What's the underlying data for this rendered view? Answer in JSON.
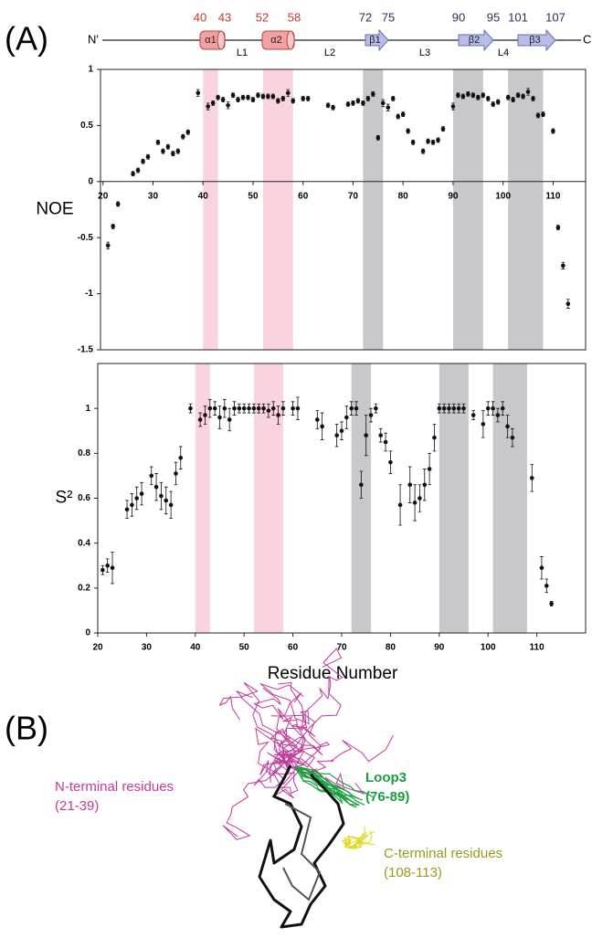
{
  "panel_labels": [
    "(A)",
    "(B)"
  ],
  "topology": {
    "n_label": "N'",
    "c_label": "C'",
    "elements": [
      {
        "kind": "helix",
        "name": "α1",
        "start": "40",
        "end": "43"
      },
      {
        "kind": "helix",
        "name": "α2",
        "start": "52",
        "end": "58"
      },
      {
        "kind": "strand",
        "name": "β1",
        "start": "72",
        "end": "75"
      },
      {
        "kind": "strand",
        "name": "β2",
        "start": "90",
        "end": "95"
      },
      {
        "kind": "strand",
        "name": "β3",
        "start": "101",
        "end": "107"
      }
    ],
    "loops": [
      "L1",
      "L2",
      "L3",
      "L4"
    ]
  },
  "chart_data": [
    {
      "type": "scatter",
      "y_label": "NOE",
      "xlim": [
        19.5,
        116.5
      ],
      "xticks": [
        20,
        30,
        40,
        50,
        60,
        70,
        80,
        90,
        100,
        110
      ],
      "ylim": [
        -1.5,
        1
      ],
      "yticks": [
        1,
        0.5,
        0,
        -0.5,
        -1,
        -1.5
      ],
      "highlight_regions": [
        {
          "range": [
            40,
            43
          ],
          "color": "#f9d3de"
        },
        {
          "range": [
            52,
            58
          ],
          "color": "#f9d3de"
        },
        {
          "range": [
            72,
            76
          ],
          "color": "#c8c8cc"
        },
        {
          "range": [
            90,
            96
          ],
          "color": "#c8c8cc"
        },
        {
          "range": [
            101,
            108
          ],
          "color": "#c8c8cc"
        }
      ],
      "series": [
        {
          "color": "#111111",
          "x": [
            21,
            22,
            23,
            26,
            27,
            28,
            29,
            31,
            32,
            33,
            34,
            35,
            36,
            37,
            39,
            41,
            42,
            43,
            44,
            45,
            46,
            47,
            48,
            49,
            50,
            51,
            52,
            53,
            54,
            55,
            56,
            57,
            58,
            60,
            61,
            65,
            66,
            69,
            70,
            71,
            72,
            73,
            74,
            75,
            76,
            77,
            78,
            79,
            80,
            81,
            82,
            84,
            85,
            86,
            87,
            88,
            90,
            91,
            92,
            93,
            94,
            95,
            96,
            97,
            98,
            99,
            101,
            102,
            103,
            104,
            105,
            106,
            107,
            108,
            110,
            111,
            112,
            113
          ],
          "values": [
            -0.57,
            -0.4,
            -0.2,
            0.07,
            0.1,
            0.18,
            0.22,
            0.35,
            0.27,
            0.31,
            0.25,
            0.27,
            0.4,
            0.44,
            0.79,
            0.67,
            0.7,
            0.75,
            0.73,
            0.68,
            0.77,
            0.73,
            0.75,
            0.75,
            0.73,
            0.77,
            0.76,
            0.76,
            0.76,
            0.72,
            0.74,
            0.79,
            0.72,
            0.74,
            0.74,
            0.68,
            0.66,
            0.69,
            0.7,
            0.72,
            0.7,
            0.74,
            0.78,
            0.39,
            0.7,
            0.66,
            0.74,
            0.58,
            0.6,
            0.45,
            0.35,
            0.27,
            0.36,
            0.35,
            0.37,
            0.47,
            0.67,
            0.77,
            0.76,
            0.78,
            0.77,
            0.75,
            0.77,
            0.74,
            0.69,
            0.71,
            0.75,
            0.73,
            0.77,
            0.76,
            0.8,
            0.74,
            0.59,
            0.6,
            0.45,
            -0.41,
            -0.75,
            -1.09
          ],
          "errors": [
            0.03,
            0.02,
            0.02,
            0.02,
            0.02,
            0.02,
            0.02,
            0.02,
            0.02,
            0.02,
            0.02,
            0.02,
            0.02,
            0.02,
            0.03,
            0.03,
            0.02,
            0.02,
            0.02,
            0.03,
            0.02,
            0.02,
            0.02,
            0.02,
            0.02,
            0.02,
            0.02,
            0.02,
            0.02,
            0.02,
            0.02,
            0.03,
            0.02,
            0.02,
            0.02,
            0.02,
            0.02,
            0.02,
            0.02,
            0.02,
            0.02,
            0.02,
            0.02,
            0.02,
            0.03,
            0.03,
            0.02,
            0.02,
            0.02,
            0.02,
            0.02,
            0.02,
            0.02,
            0.02,
            0.02,
            0.02,
            0.03,
            0.02,
            0.02,
            0.02,
            0.02,
            0.02,
            0.02,
            0.02,
            0.02,
            0.02,
            0.02,
            0.02,
            0.02,
            0.02,
            0.03,
            0.02,
            0.02,
            0.02,
            0.02,
            0.02,
            0.03,
            0.04
          ]
        }
      ]
    },
    {
      "type": "scatter",
      "y_label": "S²",
      "x_label": "Residue Number",
      "xlim": [
        20,
        120
      ],
      "xticks": [
        20,
        30,
        40,
        50,
        60,
        70,
        80,
        90,
        100,
        110
      ],
      "ylim": [
        0,
        1.2
      ],
      "yticks": [
        0,
        0.2,
        0.4,
        0.6,
        0.8,
        1
      ],
      "highlight_regions": [
        {
          "range": [
            40,
            43
          ],
          "color": "#f9d3de"
        },
        {
          "range": [
            52,
            58
          ],
          "color": "#f9d3de"
        },
        {
          "range": [
            72,
            76
          ],
          "color": "#c8c8cc"
        },
        {
          "range": [
            90,
            96
          ],
          "color": "#c8c8cc"
        },
        {
          "range": [
            101,
            108
          ],
          "color": "#c8c8cc"
        }
      ],
      "series": [
        {
          "color": "#111111",
          "x": [
            21,
            22,
            23,
            26,
            27,
            28,
            29,
            31,
            32,
            33,
            34,
            35,
            36,
            37,
            39,
            41,
            42,
            43,
            44,
            45,
            46,
            47,
            48,
            49,
            50,
            51,
            52,
            53,
            54,
            55,
            56,
            57,
            58,
            60,
            61,
            65,
            66,
            69,
            70,
            71,
            72,
            73,
            74,
            75,
            76,
            77,
            78,
            79,
            80,
            82,
            84,
            85,
            86,
            87,
            88,
            89,
            90,
            91,
            92,
            93,
            94,
            95,
            97,
            99,
            100,
            101,
            102,
            103,
            104,
            105,
            109,
            111,
            112,
            113
          ],
          "values": [
            0.28,
            0.3,
            0.29,
            0.55,
            0.57,
            0.6,
            0.62,
            0.7,
            0.65,
            0.61,
            0.59,
            0.57,
            0.71,
            0.78,
            1,
            0.95,
            0.97,
            1,
            1,
            0.96,
            1,
            0.95,
            1,
            1,
            1,
            1,
            1,
            1,
            1,
            0.99,
            1,
            0.97,
            1,
            1,
            1,
            0.95,
            0.92,
            0.88,
            0.9,
            0.96,
            1,
            1,
            0.66,
            0.88,
            0.97,
            1,
            0.88,
            0.85,
            0.76,
            0.57,
            0.66,
            0.58,
            0.6,
            0.66,
            0.73,
            0.87,
            1,
            1,
            1,
            1,
            1,
            1,
            0.97,
            0.93,
            1,
            1,
            0.97,
            1,
            0.92,
            0.87,
            0.69,
            0.29,
            0.21,
            0.13
          ],
          "errors": [
            0.02,
            0.03,
            0.07,
            0.04,
            0.05,
            0.05,
            0.05,
            0.04,
            0.06,
            0.06,
            0.06,
            0.06,
            0.05,
            0.05,
            0.02,
            0.03,
            0.04,
            0.04,
            0.03,
            0.05,
            0.04,
            0.05,
            0.03,
            0.02,
            0.02,
            0.02,
            0.02,
            0.02,
            0.02,
            0.03,
            0.03,
            0.04,
            0.03,
            0.03,
            0.05,
            0.04,
            0.06,
            0.05,
            0.04,
            0.05,
            0.03,
            0.03,
            0.06,
            0.09,
            0.03,
            0.02,
            0.03,
            0.04,
            0.05,
            0.09,
            0.08,
            0.08,
            0.06,
            0.07,
            0.07,
            0.06,
            0.02,
            0.02,
            0.02,
            0.02,
            0.02,
            0.02,
            0.02,
            0.06,
            0.03,
            0.03,
            0.03,
            0.03,
            0.05,
            0.04,
            0.06,
            0.05,
            0.03,
            0.01
          ]
        }
      ]
    }
  ],
  "structure_labels": [
    {
      "lines": [
        "N-terminal residues",
        "(21-39)"
      ],
      "color": "#c0399b"
    },
    {
      "lines": [
        "Loop3",
        "(76-89)"
      ],
      "color": "#1a9e3e"
    },
    {
      "lines": [
        "C-terminal residues",
        "(108-113)"
      ],
      "color": "#9a9a1a"
    }
  ]
}
